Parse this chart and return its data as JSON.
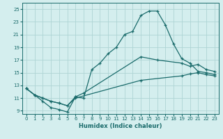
{
  "xlabel": "Humidex (Indice chaleur)",
  "bg_color": "#d4eeee",
  "grid_color": "#aed4d4",
  "line_color": "#1a6b6b",
  "xlim": [
    -0.5,
    23.5
  ],
  "ylim": [
    8.5,
    26
  ],
  "xticks": [
    0,
    1,
    2,
    3,
    4,
    5,
    6,
    7,
    8,
    9,
    10,
    11,
    12,
    13,
    14,
    15,
    16,
    17,
    18,
    19,
    20,
    21,
    22,
    23
  ],
  "yticks": [
    9,
    11,
    13,
    15,
    17,
    19,
    21,
    23,
    25
  ],
  "line1_x": [
    0,
    1,
    2,
    3,
    4,
    5,
    6,
    7,
    8,
    9,
    10,
    11,
    12,
    13,
    14,
    15,
    16,
    17,
    18,
    19,
    20,
    21,
    22,
    23
  ],
  "line1_y": [
    12.5,
    11.5,
    10.5,
    9.5,
    9.2,
    8.8,
    11.2,
    11.0,
    15.5,
    16.5,
    18.0,
    19.0,
    21.0,
    21.5,
    24.0,
    24.7,
    24.7,
    22.5,
    19.5,
    17.2,
    16.5,
    15.2,
    15.0,
    14.7
  ],
  "line2_x": [
    0,
    1,
    2,
    3,
    4,
    5,
    6,
    7,
    14,
    16,
    19,
    20,
    21,
    22,
    23
  ],
  "line2_y": [
    12.5,
    11.5,
    11.0,
    10.5,
    10.2,
    9.8,
    11.2,
    11.8,
    17.5,
    17.0,
    16.5,
    16.0,
    16.3,
    15.5,
    15.2
  ],
  "line3_x": [
    0,
    1,
    2,
    3,
    4,
    5,
    6,
    14,
    19,
    20,
    21,
    22,
    23
  ],
  "line3_y": [
    12.5,
    11.5,
    11.0,
    10.5,
    10.2,
    9.8,
    11.0,
    13.8,
    14.5,
    14.8,
    15.0,
    14.7,
    14.5
  ]
}
